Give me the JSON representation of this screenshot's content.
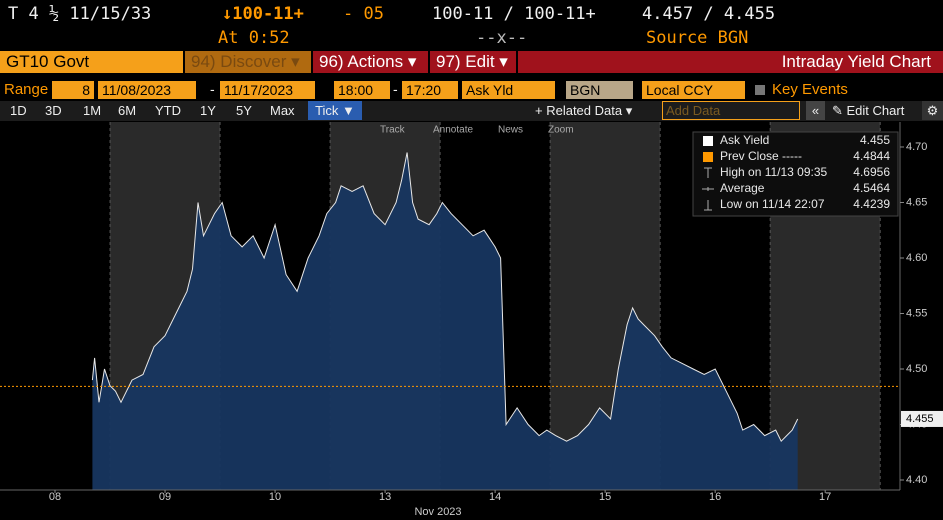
{
  "header": {
    "security": "T 4 ½ 11/15/33",
    "change_price": "↓100-11+",
    "change": "- 05",
    "bid_ask_price": "100-11 / 100-11+",
    "bid_ask_yield": "4.457 / 4.455",
    "time": "At 0:52",
    "size": "--x--",
    "source": "Source BGN"
  },
  "function_bar": {
    "ticker": "GT10 Govt",
    "discover": "94) Discover ▾",
    "actions": "96) Actions ▾",
    "edit": "97) Edit ▾",
    "title": "Intraday Yield Chart"
  },
  "settings": {
    "range_label": "Range",
    "range_days": "8",
    "start_date": "11/08/2023",
    "range_separator": "-",
    "end_date": "11/17/2023",
    "start_time": "18:00",
    "end_time": "17:20",
    "field": "Ask Yld",
    "source": "BGN",
    "currency": "Local CCY",
    "key_events": "Key Events"
  },
  "toolbar": {
    "periods": [
      "1D",
      "3D",
      "1M",
      "6M",
      "YTD",
      "1Y",
      "5Y",
      "Max"
    ],
    "tick": "Tick ▼",
    "related": "+ Related Data ▾",
    "add_data": "Add Data",
    "collapse": "«",
    "edit_chart": "✎ Edit Chart",
    "settings": "⚙"
  },
  "chart_tools": [
    "Track",
    "Annotate",
    "News",
    "Zoom"
  ],
  "chart_data": {
    "type": "area",
    "xlabel": "Nov 2023",
    "x": [
      0.84,
      0.86,
      0.9,
      0.95,
      1.0,
      1.05,
      1.1,
      1.2,
      1.3,
      1.4,
      1.5,
      1.6,
      1.7,
      1.75,
      1.8,
      1.85,
      1.95,
      2.02,
      2.1,
      2.2,
      2.3,
      2.4,
      2.5,
      2.6,
      2.7,
      2.8,
      2.9,
      2.97,
      3.05,
      3.1,
      3.2,
      3.3,
      3.4,
      3.5,
      3.6,
      3.65,
      3.7,
      3.75,
      3.8,
      3.9,
      3.97,
      4.02,
      4.1,
      4.2,
      4.3,
      4.4,
      4.5,
      4.55,
      4.6,
      4.7,
      4.8,
      4.9,
      4.97,
      5.05,
      5.15,
      5.25,
      5.35,
      5.45,
      5.55,
      5.62,
      5.7,
      5.75,
      5.8,
      5.85,
      5.95,
      6.02,
      6.1,
      6.2,
      6.3,
      6.4,
      6.5,
      6.6,
      6.7,
      6.75,
      6.85,
      6.95,
      7.05,
      7.1,
      7.15,
      7.2,
      7.25
    ],
    "series": [
      {
        "name": "Ask Yield",
        "color": "#e8e8e8",
        "fill": "#173660",
        "values": [
          4.49,
          4.51,
          4.47,
          4.5,
          4.485,
          4.48,
          4.47,
          4.49,
          4.495,
          4.52,
          4.53,
          4.55,
          4.57,
          4.59,
          4.65,
          4.62,
          4.64,
          4.65,
          4.62,
          4.61,
          4.62,
          4.6,
          4.63,
          4.585,
          4.57,
          4.6,
          4.62,
          4.64,
          4.65,
          4.665,
          4.66,
          4.665,
          4.64,
          4.63,
          4.65,
          4.67,
          4.695,
          4.65,
          4.635,
          4.63,
          4.64,
          4.65,
          4.64,
          4.63,
          4.62,
          4.625,
          4.61,
          4.6,
          4.45,
          4.465,
          4.45,
          4.44,
          4.445,
          4.44,
          4.435,
          4.44,
          4.45,
          4.465,
          4.455,
          4.5,
          4.54,
          4.555,
          4.545,
          4.54,
          4.53,
          4.52,
          4.51,
          4.505,
          4.5,
          4.495,
          4.5,
          4.48,
          4.46,
          4.445,
          4.45,
          4.44,
          4.445,
          4.435,
          4.44,
          4.445,
          4.455
        ]
      }
    ],
    "reference_line": {
      "name": "Prev Close -----",
      "value": 4.4844,
      "color": "#ff9900"
    },
    "stats": [
      {
        "label": "High on 11/13 09:35",
        "value": 4.6956
      },
      {
        "label": "Average",
        "value": 4.5464
      },
      {
        "label": "Low on 11/14 22:07",
        "value": 4.4239
      }
    ],
    "xlim": [
      0,
      8.18
    ],
    "xticks": [
      {
        "value": 0.5,
        "label": "08"
      },
      {
        "value": 1.5,
        "label": "09"
      },
      {
        "value": 2.5,
        "label": "10"
      },
      {
        "value": 3.5,
        "label": "13"
      },
      {
        "value": 4.5,
        "label": "14"
      },
      {
        "value": 5.5,
        "label": "15"
      },
      {
        "value": 6.5,
        "label": "16"
      },
      {
        "value": 7.5,
        "label": "17"
      }
    ],
    "ylim": [
      4.391,
      4.7225
    ],
    "yticks": [
      {
        "value": 4.4,
        "label": "4.40"
      },
      {
        "value": 4.45,
        "label": "4.45"
      },
      {
        "value": 4.5,
        "label": "4.50"
      },
      {
        "value": 4.55,
        "label": "4.55"
      },
      {
        "value": 4.6,
        "label": "4.60"
      },
      {
        "value": 4.65,
        "label": "4.65"
      },
      {
        "value": 4.7,
        "label": "4.70"
      }
    ]
  }
}
